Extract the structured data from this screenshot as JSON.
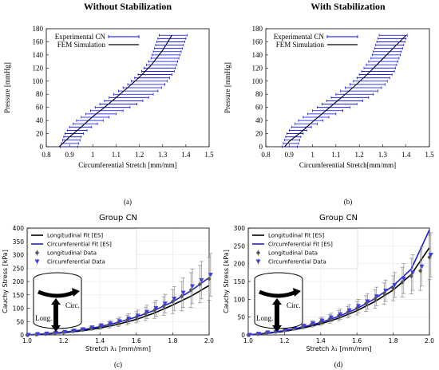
{
  "chart_data": [
    {
      "type": "line",
      "panel": "(a)",
      "title": "Without Stabilization",
      "xlabel": "Circumferential Stretch [mm/mm]",
      "ylabel": "Pressure [mmHg]",
      "xlim": [
        0.8,
        1.5
      ],
      "ylim": [
        0,
        180
      ],
      "xticks": [
        0.8,
        0.9,
        1,
        1.1,
        1.2,
        1.3,
        1.4,
        1.5
      ],
      "xtick_labels": [
        "0.8",
        "0.9",
        "1",
        "1.1",
        "1.2",
        "1.3",
        "1.4",
        "1.5"
      ],
      "yticks": [
        0,
        20,
        40,
        60,
        80,
        100,
        120,
        140,
        160,
        180
      ],
      "ytick_labels": [
        "0",
        "20",
        "40",
        "60",
        "80",
        "100",
        "120",
        "140",
        "160",
        "180"
      ],
      "legend": [
        "Experimental CN",
        "FEM Simulation"
      ],
      "legend_position": "top-left",
      "series": [
        {
          "name": "Experimental CN",
          "style": "errorbar",
          "color": "#0000ee",
          "pressure": [
            0,
            5,
            10,
            15,
            20,
            25,
            30,
            35,
            40,
            45,
            50,
            55,
            60,
            65,
            70,
            75,
            80,
            85,
            90,
            95,
            100,
            105,
            110,
            115,
            120,
            125,
            130,
            135,
            140,
            145,
            150,
            155,
            160,
            165,
            170
          ],
          "low": [
            0.86,
            0.865,
            0.87,
            0.875,
            0.88,
            0.89,
            0.9,
            0.915,
            0.93,
            0.95,
            0.97,
            0.99,
            1.01,
            1.03,
            1.05,
            1.07,
            1.09,
            1.11,
            1.13,
            1.15,
            1.165,
            1.18,
            1.195,
            1.21,
            1.22,
            1.23,
            1.24,
            1.25,
            1.255,
            1.26,
            1.265,
            1.27,
            1.275,
            1.28,
            1.285
          ],
          "high": [
            0.935,
            0.94,
            0.945,
            0.95,
            0.96,
            0.975,
            0.995,
            1.02,
            1.045,
            1.07,
            1.1,
            1.13,
            1.16,
            1.19,
            1.215,
            1.24,
            1.26,
            1.28,
            1.295,
            1.31,
            1.32,
            1.33,
            1.34,
            1.35,
            1.355,
            1.36,
            1.365,
            1.37,
            1.375,
            1.38,
            1.385,
            1.39,
            1.395,
            1.4,
            1.405
          ]
        },
        {
          "name": "FEM Simulation",
          "style": "line",
          "color": "#000000",
          "x": [
            0.855,
            0.9,
            0.95,
            1.0,
            1.05,
            1.1,
            1.15,
            1.2,
            1.25,
            1.3,
            1.34
          ],
          "y": [
            0,
            15,
            30,
            46,
            60,
            75,
            90,
            106,
            124,
            147,
            170
          ]
        }
      ]
    },
    {
      "type": "line",
      "panel": "(b)",
      "title": "With Stabilization",
      "xlabel": "Circumferential Stretch[mm/mm]",
      "ylabel": "Pressure [mmHg]",
      "xlim": [
        0.8,
        1.5
      ],
      "ylim": [
        0,
        180
      ],
      "xticks": [
        0.8,
        0.9,
        1,
        1.1,
        1.2,
        1.3,
        1.4,
        1.5
      ],
      "xtick_labels": [
        "0.8",
        "0.9",
        "1",
        "1.1",
        "1.2",
        "1.3",
        "1.4",
        "1.5"
      ],
      "yticks": [
        0,
        20,
        40,
        60,
        80,
        100,
        120,
        140,
        160,
        180
      ],
      "ytick_labels": [
        "0",
        "20",
        "40",
        "60",
        "80",
        "100",
        "120",
        "140",
        "160",
        "180"
      ],
      "legend": [
        "Experimental CN",
        "FEM Simulation"
      ],
      "legend_position": "top-left",
      "series": [
        {
          "name": "Experimental CN",
          "style": "errorbar",
          "color": "#0000ee",
          "pressure": [
            0,
            5,
            10,
            15,
            20,
            25,
            30,
            35,
            40,
            45,
            50,
            55,
            60,
            65,
            70,
            75,
            80,
            85,
            90,
            95,
            100,
            105,
            110,
            115,
            120,
            125,
            130,
            135,
            140,
            145,
            150,
            155,
            160,
            165,
            170
          ],
          "low": [
            0.87,
            0.875,
            0.88,
            0.885,
            0.89,
            0.9,
            0.91,
            0.925,
            0.94,
            0.96,
            0.98,
            1.0,
            1.02,
            1.04,
            1.06,
            1.08,
            1.1,
            1.12,
            1.14,
            1.16,
            1.175,
            1.19,
            1.2,
            1.21,
            1.22,
            1.23,
            1.24,
            1.25,
            1.255,
            1.26,
            1.265,
            1.27,
            1.275,
            1.28,
            1.285
          ],
          "high": [
            0.935,
            0.94,
            0.945,
            0.95,
            0.96,
            0.975,
            0.995,
            1.02,
            1.045,
            1.07,
            1.1,
            1.13,
            1.16,
            1.19,
            1.215,
            1.24,
            1.26,
            1.28,
            1.295,
            1.31,
            1.32,
            1.33,
            1.34,
            1.35,
            1.355,
            1.36,
            1.365,
            1.37,
            1.375,
            1.38,
            1.385,
            1.39,
            1.395,
            1.4,
            1.405
          ]
        },
        {
          "name": "FEM Simulation",
          "style": "line",
          "color": "#000000",
          "x": [
            0.88,
            0.9,
            0.95,
            1.0,
            1.05,
            1.1,
            1.15,
            1.2,
            1.25,
            1.3,
            1.35,
            1.4
          ],
          "y": [
            0,
            8,
            22,
            38,
            53,
            68,
            83,
            99,
            116,
            134,
            152,
            170
          ]
        }
      ]
    },
    {
      "type": "line",
      "panel": "(c)",
      "title": "Group CN",
      "xlabel": "Stretch λ₁ [mm/mm]",
      "ylabel": "Cauchy Stress [kPa]",
      "xlim": [
        1.0,
        2.0
      ],
      "ylim": [
        0,
        400
      ],
      "xticks": [
        1.0,
        1.2,
        1.4,
        1.6,
        1.8,
        2.0
      ],
      "xtick_labels": [
        "1.0",
        "1.2",
        "1.4",
        "1.6",
        "1.8",
        "2.0"
      ],
      "yticks": [
        0,
        50,
        100,
        150,
        200,
        250,
        300,
        350,
        400
      ],
      "ytick_labels": [
        "0",
        "50",
        "100",
        "150",
        "200",
        "250",
        "300",
        "350",
        "400"
      ],
      "legend": [
        "Longitudinal Fit [ES]",
        "Circumferential Fit [ES]",
        "Longitudinal Data",
        "Circumferential Data"
      ],
      "legend_position": "top-left",
      "inset_labels": [
        "Circ.",
        "Long."
      ],
      "series": [
        {
          "name": "Longitudinal Fit [ES]",
          "style": "line",
          "color": "#000000",
          "x": [
            1.0,
            1.1,
            1.2,
            1.3,
            1.4,
            1.5,
            1.6,
            1.7,
            1.8,
            1.9,
            2.0
          ],
          "y": [
            0,
            3,
            8,
            15,
            26,
            40,
            58,
            82,
            112,
            145,
            185
          ]
        },
        {
          "name": "Circumferential Fit [ES]",
          "style": "line",
          "color": "#1f1fd6",
          "x": [
            1.0,
            1.1,
            1.2,
            1.3,
            1.4,
            1.5,
            1.6,
            1.7,
            1.8,
            1.9,
            2.0
          ],
          "y": [
            0,
            4,
            10,
            19,
            31,
            47,
            67,
            92,
            124,
            165,
            215
          ]
        },
        {
          "name": "Longitudinal Data",
          "style": "errorbar-diamond",
          "color": "#555555",
          "x": [
            1.0,
            1.05,
            1.1,
            1.15,
            1.2,
            1.25,
            1.3,
            1.35,
            1.4,
            1.45,
            1.5,
            1.55,
            1.6,
            1.65,
            1.7,
            1.75,
            1.8,
            1.85,
            1.9,
            1.95,
            2.0
          ],
          "y": [
            0,
            2,
            4,
            7,
            10,
            14,
            19,
            25,
            31,
            38,
            46,
            56,
            66,
            79,
            92,
            108,
            125,
            145,
            168,
            190,
            210
          ],
          "err": [
            0,
            1,
            2,
            3,
            4,
            5,
            6,
            8,
            10,
            12,
            15,
            18,
            21,
            25,
            30,
            35,
            45,
            55,
            65,
            70,
            80
          ]
        },
        {
          "name": "Circumferential Data",
          "style": "errorbar-triangle",
          "color": "#3f3fe0",
          "x": [
            1.0,
            1.05,
            1.1,
            1.15,
            1.2,
            1.25,
            1.3,
            1.35,
            1.4,
            1.45,
            1.5,
            1.55,
            1.6,
            1.65,
            1.7,
            1.75,
            1.8,
            1.85,
            1.9,
            1.95,
            2.0
          ],
          "y": [
            0,
            3,
            5,
            8,
            11,
            16,
            21,
            27,
            34,
            42,
            51,
            61,
            72,
            86,
            100,
            117,
            136,
            158,
            182,
            205,
            225
          ],
          "err": [
            0,
            1,
            2,
            3,
            4,
            5,
            6,
            8,
            10,
            12,
            15,
            18,
            21,
            25,
            30,
            35,
            45,
            55,
            65,
            70,
            80
          ]
        }
      ]
    },
    {
      "type": "line",
      "panel": "(d)",
      "title": "Group CN",
      "xlabel": "Stretch λ₁ [mm/mm]",
      "ylabel": "Cauchy Stress [kPa]",
      "xlim": [
        1.0,
        2.0
      ],
      "ylim": [
        0,
        300
      ],
      "xticks": [
        1.0,
        1.2,
        1.4,
        1.6,
        1.8,
        2.0
      ],
      "xtick_labels": [
        "1.0",
        "1.2",
        "1.4",
        "1.6",
        "1.8",
        "2.0"
      ],
      "yticks": [
        0,
        50,
        100,
        150,
        200,
        250,
        300
      ],
      "ytick_labels": [
        "0",
        "50",
        "100",
        "150",
        "200",
        "250",
        "300"
      ],
      "legend": [
        "Longitudinal Fit [ES]",
        "Circumferential Fit [ES]",
        "Longitudinal Data",
        "Circumferential Data"
      ],
      "legend_position": "top-left",
      "inset_labels": [
        "Circ.",
        "Long."
      ],
      "series": [
        {
          "name": "Longitudinal Fit [ES]",
          "style": "line",
          "color": "#000000",
          "x": [
            1.0,
            1.1,
            1.2,
            1.3,
            1.4,
            1.5,
            1.6,
            1.7,
            1.8,
            1.9,
            2.0
          ],
          "y": [
            0,
            4,
            10,
            19,
            31,
            47,
            68,
            94,
            126,
            170,
            245
          ]
        },
        {
          "name": "Circumferential Fit [ES]",
          "style": "line",
          "color": "#1f1fd6",
          "x": [
            1.0,
            1.1,
            1.2,
            1.3,
            1.4,
            1.5,
            1.6,
            1.7,
            1.8,
            1.9,
            2.0
          ],
          "y": [
            0,
            5,
            12,
            22,
            35,
            52,
            74,
            102,
            138,
            185,
            295
          ]
        },
        {
          "name": "Longitudinal Data",
          "style": "errorbar-diamond",
          "color": "#555555",
          "x": [
            1.0,
            1.05,
            1.1,
            1.15,
            1.2,
            1.25,
            1.3,
            1.35,
            1.4,
            1.45,
            1.5,
            1.55,
            1.6,
            1.65,
            1.7,
            1.75,
            1.8,
            1.85,
            1.9,
            1.95,
            2.0
          ],
          "y": [
            0,
            3,
            6,
            9,
            13,
            18,
            23,
            30,
            37,
            45,
            54,
            64,
            75,
            88,
            101,
            116,
            131,
            148,
            165,
            180,
            218
          ],
          "err": [
            0,
            1,
            2,
            3,
            4,
            5,
            6,
            8,
            10,
            12,
            14,
            16,
            19,
            22,
            26,
            30,
            35,
            42,
            50,
            55,
            62
          ]
        },
        {
          "name": "Circumferential Data",
          "style": "errorbar-triangle",
          "color": "#3f3fe0",
          "x": [
            1.0,
            1.05,
            1.1,
            1.15,
            1.2,
            1.25,
            1.3,
            1.35,
            1.4,
            1.45,
            1.5,
            1.55,
            1.6,
            1.65,
            1.7,
            1.75,
            1.8,
            1.85,
            1.9,
            1.95,
            2.0
          ],
          "y": [
            0,
            3,
            7,
            10,
            14,
            19,
            25,
            32,
            40,
            49,
            58,
            69,
            81,
            94,
            108,
            124,
            140,
            158,
            175,
            192,
            225
          ],
          "err": [
            0,
            1,
            2,
            3,
            4,
            5,
            6,
            8,
            10,
            12,
            14,
            16,
            19,
            22,
            26,
            30,
            35,
            42,
            50,
            55,
            62
          ]
        }
      ]
    }
  ]
}
